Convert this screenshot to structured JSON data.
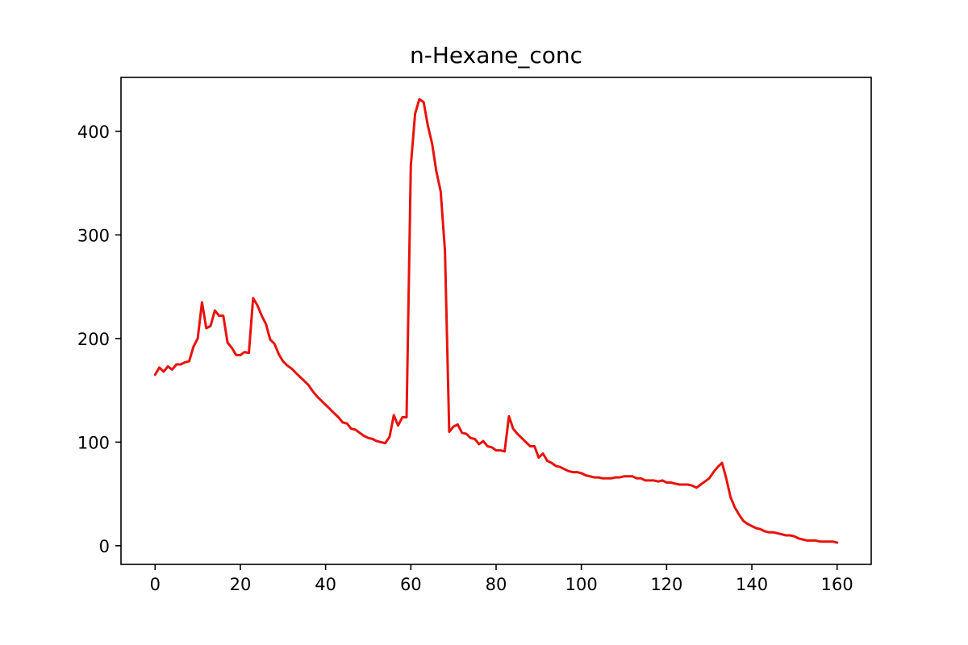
{
  "chart_data": {
    "type": "line",
    "title": "n-Hexane_conc",
    "xlabel": "",
    "ylabel": "",
    "xlim": [
      -8,
      168
    ],
    "ylim": [
      -18,
      452
    ],
    "xticks": [
      0,
      20,
      40,
      60,
      80,
      100,
      120,
      140,
      160
    ],
    "yticks": [
      0,
      100,
      200,
      300,
      400
    ],
    "grid": false,
    "legend": "none",
    "line_color": "#e8120c",
    "series": [
      {
        "x": [
          0,
          1,
          2,
          3,
          4,
          5,
          6,
          7,
          8,
          9,
          10,
          11,
          12,
          13,
          14,
          15,
          16,
          17,
          18,
          19,
          20,
          21,
          22,
          23,
          24,
          25,
          26,
          27,
          28,
          29,
          30,
          31,
          32,
          33,
          34,
          35,
          36,
          37,
          38,
          39,
          40,
          41,
          42,
          43,
          44,
          45,
          46,
          47,
          48,
          49,
          50,
          51,
          52,
          53,
          54,
          55,
          56,
          57,
          58,
          59,
          60,
          61,
          62,
          63,
          64,
          65,
          66,
          67,
          68,
          69,
          70,
          71,
          72,
          73,
          74,
          75,
          76,
          77,
          78,
          79,
          80,
          81,
          82,
          83,
          84,
          85,
          86,
          87,
          88,
          89,
          90,
          91,
          92,
          93,
          94,
          95,
          96,
          97,
          98,
          99,
          100,
          101,
          102,
          103,
          104,
          105,
          106,
          107,
          108,
          109,
          110,
          111,
          112,
          113,
          114,
          115,
          116,
          117,
          118,
          119,
          120,
          121,
          122,
          123,
          124,
          125,
          126,
          127,
          128,
          129,
          130,
          131,
          132,
          133,
          134,
          135,
          136,
          137,
          138,
          139,
          140,
          141,
          142,
          143,
          144,
          145,
          146,
          147,
          148,
          149,
          150,
          151,
          152,
          153,
          154,
          155,
          156,
          157,
          158,
          159,
          160
        ],
        "y": [
          165,
          172,
          168,
          173,
          170,
          175,
          175,
          177,
          178,
          192,
          200,
          235,
          210,
          212,
          227,
          222,
          222,
          196,
          191,
          184,
          184,
          187,
          186,
          239,
          232,
          222,
          214,
          199,
          195,
          185,
          178,
          174,
          171,
          167,
          163,
          159,
          155,
          149,
          144,
          140,
          136,
          132,
          128,
          124,
          119,
          118,
          113,
          112,
          109,
          106,
          104,
          103,
          101,
          100,
          99,
          105,
          126,
          116,
          124,
          124,
          367,
          417,
          431,
          428,
          405,
          388,
          361,
          342,
          285,
          110,
          115,
          117,
          109,
          108,
          104,
          103,
          98,
          101,
          96,
          95,
          92,
          92,
          91,
          125,
          113,
          108,
          104,
          100,
          96,
          96,
          85,
          89,
          82,
          80,
          77,
          76,
          74,
          72,
          71,
          71,
          70,
          68,
          67,
          66,
          66,
          65,
          65,
          65,
          66,
          66,
          67,
          67,
          67,
          65,
          65,
          63,
          63,
          63,
          62,
          63,
          61,
          61,
          60,
          59,
          59,
          59,
          58,
          56,
          59,
          62,
          65,
          71,
          76,
          80,
          65,
          47,
          37,
          30,
          24,
          21,
          19,
          17,
          16,
          14,
          13,
          13,
          12,
          11,
          10,
          10,
          9,
          7,
          6,
          5,
          5,
          5,
          4,
          4,
          4,
          4,
          3
        ]
      }
    ]
  }
}
